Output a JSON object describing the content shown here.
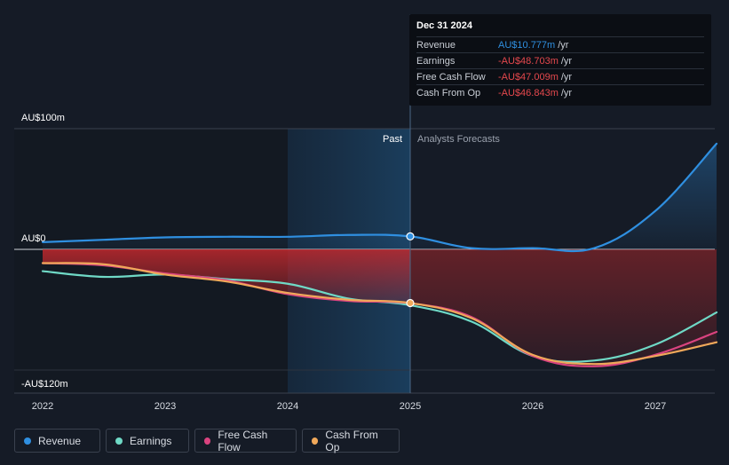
{
  "chart_data": {
    "type": "line",
    "title": "",
    "x": [
      2022.0,
      2022.5,
      2023.0,
      2023.5,
      2024.0,
      2024.5,
      2025.0,
      2025.5,
      2026.0,
      2026.5,
      2027.0,
      2027.5
    ],
    "x_tick_labels": [
      "2022",
      "2023",
      "2024",
      "2025",
      "2026",
      "2027"
    ],
    "y_tick_labels": [
      "AU$100m",
      "AU$0",
      "-AU$120m"
    ],
    "ylim": [
      -120,
      100
    ],
    "xlim": [
      2021.75,
      2027.5
    ],
    "divider_x": 2025.0,
    "past_label": "Past",
    "forecast_label": "Analysts Forecasts",
    "series": [
      {
        "name": "Revenue",
        "color": "#2f8fe0",
        "values": [
          6,
          8,
          10,
          10.5,
          10.5,
          12,
          10.8,
          1,
          1,
          1,
          32,
          88
        ]
      },
      {
        "name": "Earnings",
        "color": "#6fd9c6",
        "values": [
          -19,
          -24,
          -22,
          -26,
          -30,
          -43,
          -48.7,
          -63,
          -93,
          -97,
          -83,
          -55
        ]
      },
      {
        "name": "Free Cash Flow",
        "color": "#d9437f",
        "values": [
          -12,
          -14,
          -21,
          -27,
          -39,
          -45,
          -47,
          -59,
          -93,
          -102,
          -92,
          -72
        ]
      },
      {
        "name": "Cash From Op",
        "color": "#f0a85a",
        "values": [
          -12,
          -13,
          -22,
          -28,
          -38,
          -44,
          -46.8,
          -60,
          -92,
          -100,
          -93,
          -81
        ]
      }
    ]
  },
  "tooltip": {
    "date": "Dec 31 2024",
    "rows": [
      {
        "label": "Revenue",
        "value": "AU$10.777m",
        "unit": "/yr",
        "color": "#2f8fe0"
      },
      {
        "label": "Earnings",
        "value": "-AU$48.703m",
        "unit": "/yr",
        "color": "#e5484d"
      },
      {
        "label": "Free Cash Flow",
        "value": "-AU$47.009m",
        "unit": "/yr",
        "color": "#e5484d"
      },
      {
        "label": "Cash From Op",
        "value": "-AU$46.843m",
        "unit": "/yr",
        "color": "#e5484d"
      }
    ]
  },
  "legend": [
    {
      "label": "Revenue",
      "color": "#2f8fe0"
    },
    {
      "label": "Earnings",
      "color": "#6fd9c6"
    },
    {
      "label": "Free Cash Flow",
      "color": "#d9437f"
    },
    {
      "label": "Cash From Op",
      "color": "#f0a85a"
    }
  ]
}
